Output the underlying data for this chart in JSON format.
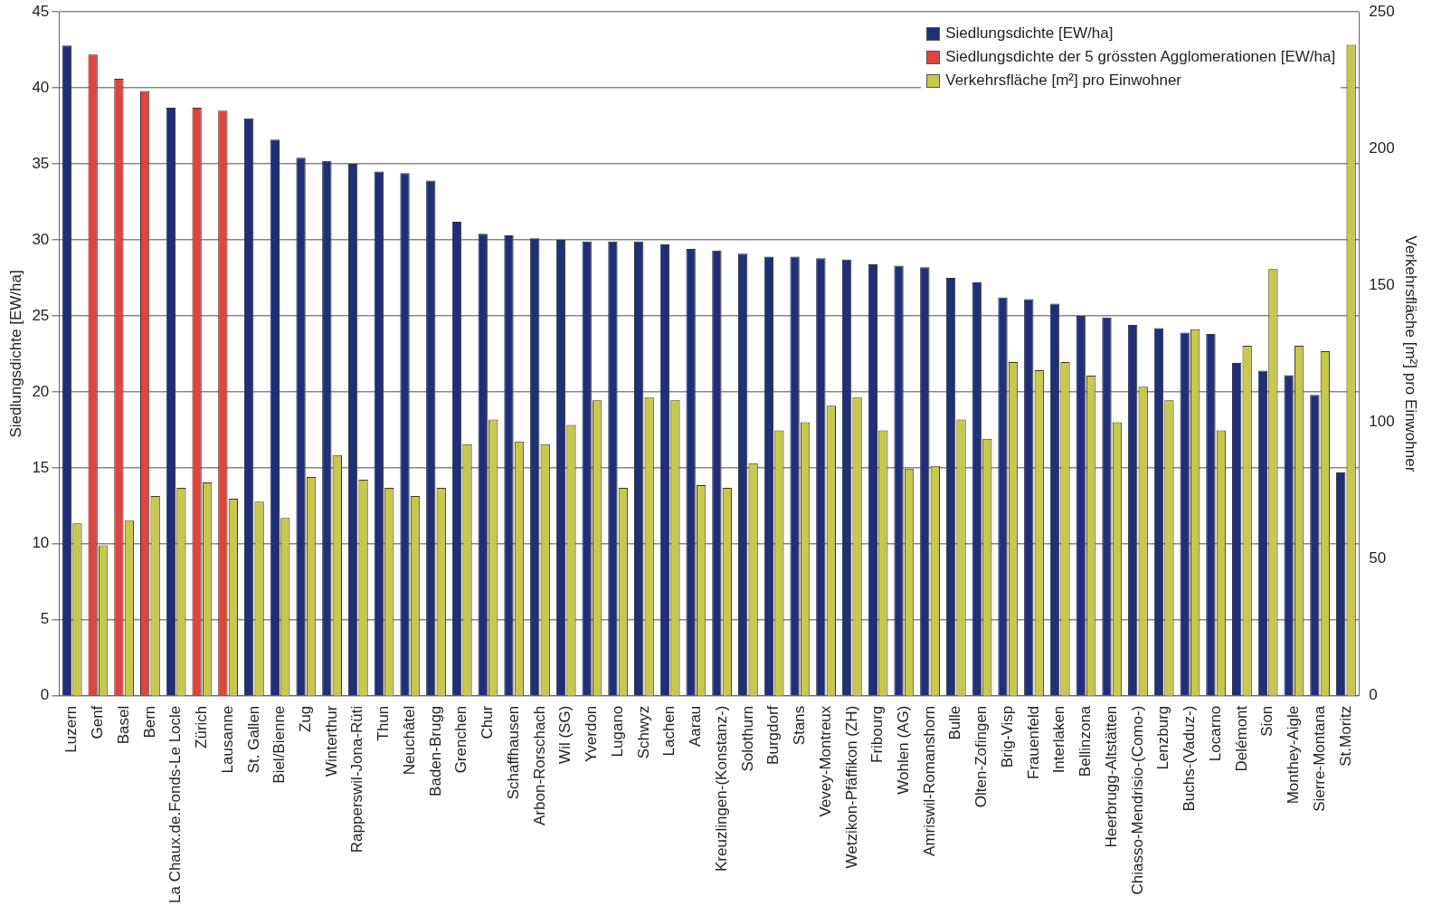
{
  "chart_data": {
    "type": "bar",
    "xlabel": null,
    "ylabel": "Siedlungsdichte [EW/ha]",
    "y2label": "Verkehrsfläche [m²] pro Einwohner",
    "categories": [
      "Luzern",
      "Genf",
      "Basel",
      "Bern",
      "La Chaux.de.Fonds-Le Locle",
      "Zürich",
      "Lausanne",
      "St. Gallen",
      "Biel/Bienne",
      "Zug",
      "Winterthur",
      "Rapperswil-Jona-Rüti",
      "Thun",
      "Neuchâtel",
      "Baden-Brugg",
      "Grenchen",
      "Chur",
      "Schaffhausen",
      "Arbon-Rorschach",
      "Wil (SG)",
      "Yverdon",
      "Lugano",
      "Schwyz",
      "Lachen",
      "Aarau",
      "Kreuzlingen-(Konstanz-)",
      "Solothurn",
      "Burgdorf",
      "Stans",
      "Vevey-Montreux",
      "Wetzikon-Pfäffikon (ZH)",
      "Fribourg",
      "Wohlen (AG)",
      "Amriswil-Romanshorn",
      "Bulle",
      "Olten-Zofingen",
      "Brig-Visp",
      "Frauenfeld",
      "Interlaken",
      "Bellinzona",
      "Heerbrugg-Altstätten",
      "Chiasso-Mendrisio-(Como-)",
      "Lenzburg",
      "Buchs-(Vaduz-)",
      "Locarno",
      "Delémont",
      "Sion",
      "Monthey-Aigle",
      "Sierre-Montana",
      "St.Moritz"
    ],
    "series": [
      {
        "name": "Siedlungsdichte [EW/ha]",
        "color": "#1f2f7a",
        "values": [
          42.8,
          null,
          null,
          null,
          38.7,
          null,
          null,
          38.0,
          36.6,
          35.4,
          35.2,
          35.0,
          34.5,
          34.4,
          33.9,
          31.2,
          30.4,
          30.3,
          30.1,
          30.0,
          29.9,
          29.9,
          29.9,
          29.7,
          29.4,
          29.3,
          29.1,
          28.9,
          28.9,
          28.8,
          28.7,
          28.4,
          28.3,
          28.2,
          27.5,
          27.2,
          26.2,
          26.1,
          25.8,
          25.0,
          24.9,
          24.4,
          24.2,
          23.9,
          23.8,
          21.9,
          21.4,
          21.1,
          19.8,
          14.7
        ]
      },
      {
        "name": "Siedlungsdichte der 5 grössten Agglomerationen [EW/ha]",
        "color": "#e0443c",
        "values": [
          null,
          42.2,
          40.6,
          39.8,
          null,
          38.7,
          38.5,
          null,
          null,
          null,
          null,
          null,
          null,
          null,
          null,
          null,
          null,
          null,
          null,
          null,
          null,
          null,
          null,
          null,
          null,
          null,
          null,
          null,
          null,
          null,
          null,
          null,
          null,
          null,
          null,
          null,
          null,
          null,
          null,
          null,
          null,
          null,
          null,
          null,
          null,
          null,
          null,
          null,
          null,
          null
        ]
      },
      {
        "name": "Verkehrsfläche [m²] pro Einwohner",
        "color": "#c8c84a",
        "axis": "y2",
        "values": [
          63,
          55,
          64,
          73,
          76,
          78,
          72,
          71,
          65,
          80,
          88,
          79,
          76,
          73,
          76,
          92,
          101,
          93,
          92,
          99,
          108,
          76,
          109,
          108,
          77,
          76,
          85,
          97,
          100,
          106,
          109,
          97,
          83,
          84,
          101,
          94,
          122,
          119,
          122,
          117,
          100,
          113,
          108,
          134,
          97,
          128,
          156,
          128,
          126,
          238
        ]
      }
    ],
    "ylim": [
      0,
      45
    ],
    "yticks": [
      0,
      5,
      10,
      15,
      20,
      25,
      30,
      35,
      40,
      45
    ],
    "y2lim": [
      0,
      250
    ],
    "y2ticks": [
      0,
      50,
      100,
      150,
      200,
      250
    ],
    "grid": "y",
    "legend": "top right"
  }
}
